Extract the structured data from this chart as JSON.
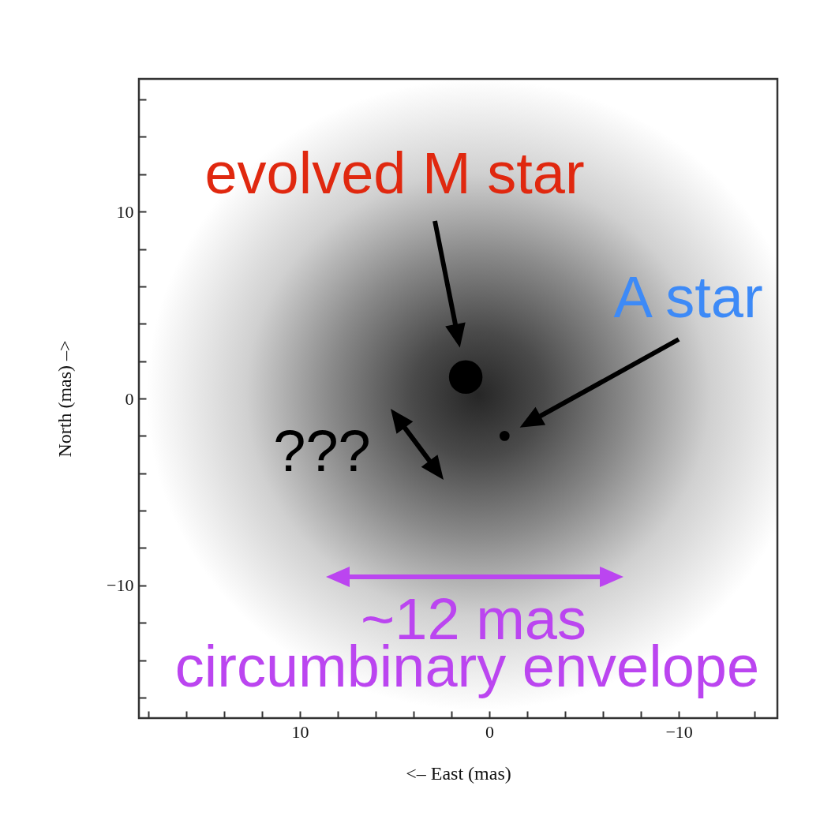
{
  "chart_data": {
    "type": "bubble",
    "xlabel": "<– East (mas)",
    "ylabel": "North (mas) –>",
    "x": [
      1.25,
      -0.8
    ],
    "values": [
      1.15,
      -2.0
    ],
    "sizes": [
      1,
      0.09
    ],
    "color": "#000000",
    "xlim": [
      18.5,
      -15.2
    ],
    "ylim": [
      -17.1,
      17.1
    ],
    "xticks": [
      {
        "value": 18,
        "label": null
      },
      {
        "value": 16,
        "label": null
      },
      {
        "value": 14,
        "label": null
      },
      {
        "value": 12,
        "label": null
      },
      10,
      {
        "value": 8,
        "label": null
      },
      {
        "value": 6,
        "label": null
      },
      {
        "value": 4,
        "label": null
      },
      {
        "value": 2,
        "label": null
      },
      0,
      {
        "value": -2,
        "label": null
      },
      {
        "value": -4,
        "label": null
      },
      {
        "value": -6,
        "label": null
      },
      {
        "value": -8,
        "label": null
      },
      {
        "value": -10,
        "label": "−10"
      },
      {
        "value": -12,
        "label": null
      },
      {
        "value": -14,
        "label": null
      }
    ],
    "yticks": [
      {
        "value": -16,
        "label": null
      },
      {
        "value": -14,
        "label": null
      },
      {
        "value": -12,
        "label": null
      },
      {
        "value": -10,
        "label": "−10"
      },
      {
        "value": -8,
        "label": null
      },
      {
        "value": -6,
        "label": null
      },
      {
        "value": -4,
        "label": null
      },
      {
        "value": -2,
        "label": null
      },
      0,
      {
        "value": 2,
        "label": null
      },
      {
        "value": 4,
        "label": null
      },
      {
        "value": 6,
        "label": null
      },
      {
        "value": 8,
        "label": null
      },
      10,
      {
        "value": 12,
        "label": null
      },
      {
        "value": 14,
        "label": null
      },
      {
        "value": 16,
        "label": null
      }
    ],
    "grid": false,
    "annotations": [
      "evolved M star",
      "A star",
      "???",
      "~12 mas",
      "circumbinary envelope"
    ]
  }
}
